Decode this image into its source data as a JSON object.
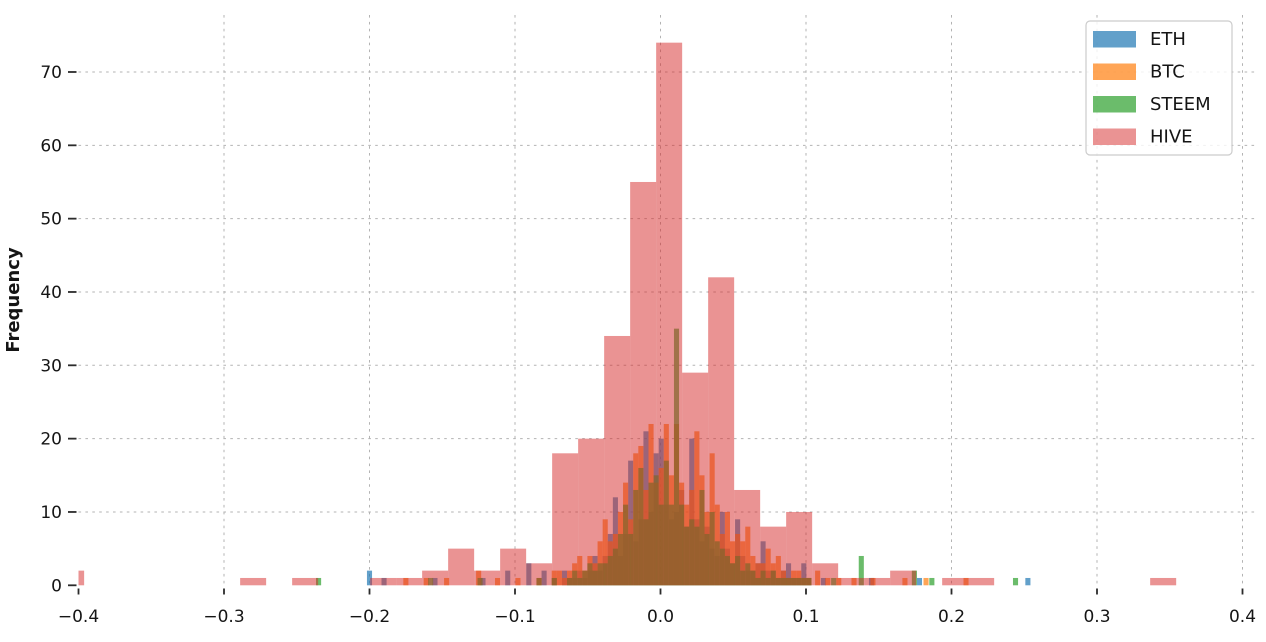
{
  "chart": {
    "ylabel": "Frequency",
    "xtick_labels": [
      "−0.4",
      "−0.3",
      "−0.2",
      "−0.1",
      "0.0",
      "0.1",
      "0.2",
      "0.3",
      "0.4"
    ],
    "ytick_labels": [
      "0",
      "10",
      "20",
      "30",
      "40",
      "50",
      "60",
      "70"
    ],
    "grid_color": "#b3b3b3",
    "tick_color": "#2b2b2b",
    "legend_border_color": "#cccccc",
    "background": "#ffffff"
  },
  "chart_data": {
    "type": "histogram",
    "title": "",
    "xlabel": "",
    "ylabel": "Frequency",
    "xlim": [
      -0.4,
      0.411
    ],
    "ylim": [
      0,
      77.7
    ],
    "xticks": [
      -0.4,
      -0.3,
      -0.2,
      -0.1,
      0.0,
      0.1,
      0.2,
      0.3,
      0.4
    ],
    "yticks": [
      0,
      10,
      20,
      30,
      40,
      50,
      60,
      70
    ],
    "grid": "both-dashed",
    "legend_position": "upper right",
    "series": [
      {
        "name": "ETH",
        "color": "#1f77b4",
        "alpha": 0.7,
        "bin_width": 0.0035,
        "bins": [
          [
            -0.2,
            2
          ],
          [
            -0.19,
            1
          ],
          [
            -0.155,
            1
          ],
          [
            -0.122,
            1
          ],
          [
            -0.105,
            2
          ],
          [
            -0.0905,
            3
          ],
          [
            -0.08,
            2
          ],
          [
            -0.073,
            1
          ],
          [
            -0.066,
            2
          ],
          [
            -0.0625,
            1
          ],
          [
            -0.059,
            1
          ],
          [
            -0.0555,
            2
          ],
          [
            -0.052,
            1
          ],
          [
            -0.0485,
            2
          ],
          [
            -0.045,
            4
          ],
          [
            -0.0415,
            2
          ],
          [
            -0.038,
            4
          ],
          [
            -0.0345,
            7
          ],
          [
            -0.031,
            12
          ],
          [
            -0.0275,
            4
          ],
          [
            -0.024,
            7
          ],
          [
            -0.0205,
            17
          ],
          [
            -0.017,
            6
          ],
          [
            -0.0135,
            9
          ],
          [
            -0.01,
            21
          ],
          [
            -0.0065,
            10
          ],
          [
            -0.003,
            18
          ],
          [
            0.0005,
            20
          ],
          [
            0.004,
            11
          ],
          [
            0.0075,
            9
          ],
          [
            0.011,
            10
          ],
          [
            0.0145,
            13
          ],
          [
            0.018,
            8
          ],
          [
            0.0215,
            20
          ],
          [
            0.025,
            9
          ],
          [
            0.0285,
            6
          ],
          [
            0.032,
            8
          ],
          [
            0.0355,
            5
          ],
          [
            0.039,
            4
          ],
          [
            0.0425,
            10
          ],
          [
            0.046,
            5
          ],
          [
            0.0495,
            3
          ],
          [
            0.053,
            9
          ],
          [
            0.0565,
            4
          ],
          [
            0.06,
            2
          ],
          [
            0.0635,
            2
          ],
          [
            0.067,
            3
          ],
          [
            0.0705,
            6
          ],
          [
            0.074,
            2
          ],
          [
            0.0775,
            2
          ],
          [
            0.081,
            1
          ],
          [
            0.0845,
            2
          ],
          [
            0.088,
            3
          ],
          [
            0.0915,
            1
          ],
          [
            0.095,
            1
          ],
          [
            0.0985,
            3
          ],
          [
            0.102,
            1
          ],
          [
            0.112,
            1
          ],
          [
            0.145,
            1
          ],
          [
            0.178,
            1
          ],
          [
            0.2525,
            1
          ]
        ]
      },
      {
        "name": "BTC",
        "color": "#ff7f0e",
        "alpha": 0.7,
        "bin_width": 0.0035,
        "bins": [
          [
            -0.175,
            1
          ],
          [
            -0.161,
            1
          ],
          [
            -0.147,
            1
          ],
          [
            -0.125,
            2
          ],
          [
            -0.112,
            1
          ],
          [
            -0.098,
            1
          ],
          [
            -0.0835,
            1
          ],
          [
            -0.073,
            2
          ],
          [
            -0.0695,
            2
          ],
          [
            -0.066,
            1
          ],
          [
            -0.0625,
            2
          ],
          [
            -0.059,
            3
          ],
          [
            -0.0555,
            4
          ],
          [
            -0.052,
            2
          ],
          [
            -0.0485,
            4
          ],
          [
            -0.045,
            3
          ],
          [
            -0.0415,
            6
          ],
          [
            -0.038,
            9
          ],
          [
            -0.0345,
            6
          ],
          [
            -0.031,
            7
          ],
          [
            -0.0275,
            10
          ],
          [
            -0.024,
            14
          ],
          [
            -0.0205,
            9
          ],
          [
            -0.017,
            18
          ],
          [
            -0.0135,
            19
          ],
          [
            -0.01,
            13
          ],
          [
            -0.0065,
            22
          ],
          [
            -0.003,
            14
          ],
          [
            0.0005,
            16
          ],
          [
            0.004,
            22
          ],
          [
            0.0075,
            15
          ],
          [
            0.011,
            22
          ],
          [
            0.0145,
            14
          ],
          [
            0.018,
            11
          ],
          [
            0.0215,
            13
          ],
          [
            0.025,
            21
          ],
          [
            0.0285,
            15
          ],
          [
            0.032,
            10
          ],
          [
            0.0355,
            18
          ],
          [
            0.039,
            11
          ],
          [
            0.0425,
            7
          ],
          [
            0.046,
            10
          ],
          [
            0.0495,
            6
          ],
          [
            0.053,
            7
          ],
          [
            0.0565,
            6
          ],
          [
            0.06,
            8
          ],
          [
            0.0635,
            4
          ],
          [
            0.067,
            3
          ],
          [
            0.0705,
            3
          ],
          [
            0.074,
            5
          ],
          [
            0.0775,
            3
          ],
          [
            0.081,
            4
          ],
          [
            0.0845,
            2
          ],
          [
            0.088,
            1
          ],
          [
            0.0915,
            2
          ],
          [
            0.095,
            2
          ],
          [
            0.0985,
            1
          ],
          [
            0.102,
            1
          ],
          [
            0.108,
            2
          ],
          [
            0.115,
            1
          ],
          [
            0.1225,
            1
          ],
          [
            0.133,
            1
          ],
          [
            0.146,
            1
          ],
          [
            0.168,
            1
          ],
          [
            0.1825,
            1
          ],
          [
            0.21,
            1
          ]
        ]
      },
      {
        "name": "STEEM",
        "color": "#2ca02c",
        "alpha": 0.7,
        "bin_width": 0.0035,
        "bins": [
          [
            -0.235,
            1
          ],
          [
            -0.158,
            1
          ],
          [
            -0.124,
            1
          ],
          [
            -0.0835,
            1
          ],
          [
            -0.073,
            1
          ],
          [
            -0.0625,
            1
          ],
          [
            -0.059,
            2
          ],
          [
            -0.0555,
            1
          ],
          [
            -0.052,
            2
          ],
          [
            -0.0485,
            3
          ],
          [
            -0.045,
            2
          ],
          [
            -0.0415,
            3
          ],
          [
            -0.038,
            3
          ],
          [
            -0.0345,
            4
          ],
          [
            -0.031,
            5
          ],
          [
            -0.0275,
            7
          ],
          [
            -0.024,
            11
          ],
          [
            -0.0205,
            7
          ],
          [
            -0.017,
            13
          ],
          [
            -0.0135,
            16
          ],
          [
            -0.01,
            9
          ],
          [
            -0.0065,
            14
          ],
          [
            -0.003,
            15
          ],
          [
            0.0005,
            11
          ],
          [
            0.004,
            17
          ],
          [
            0.0075,
            11
          ],
          [
            0.011,
            35
          ],
          [
            0.0145,
            11
          ],
          [
            0.018,
            8
          ],
          [
            0.0215,
            9
          ],
          [
            0.025,
            8
          ],
          [
            0.0285,
            13
          ],
          [
            0.032,
            7
          ],
          [
            0.0355,
            10
          ],
          [
            0.039,
            6
          ],
          [
            0.0425,
            5
          ],
          [
            0.046,
            4
          ],
          [
            0.0495,
            3
          ],
          [
            0.053,
            4
          ],
          [
            0.0565,
            2
          ],
          [
            0.06,
            3
          ],
          [
            0.0635,
            2
          ],
          [
            0.067,
            1
          ],
          [
            0.0705,
            2
          ],
          [
            0.074,
            1
          ],
          [
            0.0775,
            2
          ],
          [
            0.081,
            1
          ],
          [
            0.0845,
            1
          ],
          [
            0.088,
            1
          ],
          [
            0.0915,
            1
          ],
          [
            0.095,
            1
          ],
          [
            0.0985,
            1
          ],
          [
            0.102,
            1
          ],
          [
            0.119,
            1
          ],
          [
            0.138,
            4
          ],
          [
            0.1745,
            2
          ],
          [
            0.1865,
            1
          ],
          [
            0.244,
            1
          ]
        ]
      },
      {
        "name": "HIVE",
        "color": "#d62728",
        "alpha": 0.5,
        "bin_width": 0.01787,
        "bins": [
          [
            -0.405065,
            2
          ],
          [
            -0.279975,
            1
          ],
          [
            -0.244235,
            1
          ],
          [
            -0.190625,
            1
          ],
          [
            -0.172755,
            1
          ],
          [
            -0.154885,
            2
          ],
          [
            -0.137015,
            5
          ],
          [
            -0.119145,
            2
          ],
          [
            -0.101275,
            5
          ],
          [
            -0.083405,
            3
          ],
          [
            -0.065535,
            18
          ],
          [
            -0.047665,
            20
          ],
          [
            -0.029795,
            34
          ],
          [
            -0.011925,
            55
          ],
          [
            0.005945,
            74
          ],
          [
            0.023815,
            29
          ],
          [
            0.041685,
            42
          ],
          [
            0.059555,
            13
          ],
          [
            0.077425,
            8
          ],
          [
            0.095295,
            10
          ],
          [
            0.113165,
            3
          ],
          [
            0.131035,
            1
          ],
          [
            0.148905,
            1
          ],
          [
            0.166775,
            2
          ],
          [
            0.202515,
            1
          ],
          [
            0.220385,
            1
          ],
          [
            0.345475,
            1
          ]
        ]
      }
    ]
  }
}
